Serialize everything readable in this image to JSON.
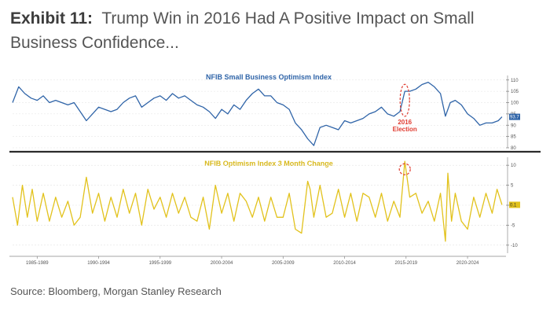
{
  "header": {
    "exhibit_label": "Exhibit 11:",
    "title_text": "Trump Win in 2016 Had A Positive Impact on Small Business Confidence..."
  },
  "source": "Source: Bloomberg, Morgan Stanley Research",
  "colors": {
    "top_series": "#2f64a8",
    "bottom_series": "#e2c21c",
    "highlight": "#e03c31",
    "divider": "#2b2b2b",
    "tag": "#2f64a8"
  },
  "chart_data": [
    {
      "type": "line",
      "title": "NFIB Small Business Optimism Index",
      "ylim": [
        80,
        112
      ],
      "yticks": [
        80,
        85,
        90,
        95,
        100,
        105,
        110
      ],
      "ytick_labels": [
        "80",
        "85",
        "90",
        "95",
        "100",
        "105",
        "110"
      ],
      "current_value_label": "93.7",
      "current_value": 93.7,
      "annotation": {
        "text": [
          "2016",
          "Election"
        ],
        "x": 2016.9,
        "y_top": 106,
        "y_bottom": 96
      },
      "series": [
        {
          "x": [
            1985,
            1985.5,
            1986,
            1986.5,
            1987,
            1987.5,
            1988,
            1988.5,
            1989,
            1989.5,
            1990,
            1990.5,
            1991,
            1991.5,
            1992,
            1992.5,
            1993,
            1993.5,
            1994,
            1994.5,
            1995,
            1995.5,
            1996,
            1996.5,
            1997,
            1997.5,
            1998,
            1998.5,
            1999,
            1999.5,
            2000,
            2000.5,
            2001,
            2001.5,
            2002,
            2002.5,
            2003,
            2003.5,
            2004,
            2004.5,
            2005,
            2005.5,
            2006,
            2006.5,
            2007,
            2007.5,
            2008,
            2008.5,
            2009,
            2009.5,
            2010,
            2010.5,
            2011,
            2011.5,
            2012,
            2012.5,
            2013,
            2013.5,
            2014,
            2014.5,
            2015,
            2015.5,
            2016,
            2016.5,
            2016.9,
            2017.3,
            2017.8,
            2018.3,
            2018.8,
            2019.3,
            2019.8,
            2020.2,
            2020.6,
            2021,
            2021.5,
            2022,
            2022.5,
            2023,
            2023.5,
            2024,
            2024.5,
            2024.8
          ],
          "y": [
            100,
            107,
            104,
            102,
            101,
            103,
            100,
            101,
            100,
            99,
            100,
            96,
            92,
            95,
            98,
            97,
            96,
            97,
            100,
            102,
            103,
            98,
            100,
            102,
            103,
            101,
            104,
            102,
            103,
            101,
            99,
            98,
            96,
            93,
            97,
            95,
            99,
            97,
            101,
            104,
            106,
            103,
            103,
            100,
            99,
            97,
            91,
            88,
            84,
            81,
            89,
            90,
            89,
            88,
            92,
            91,
            92,
            93,
            95,
            96,
            98,
            95,
            94,
            96,
            105,
            105,
            106,
            108,
            109,
            107,
            104,
            94,
            100,
            101,
            99,
            95,
            93,
            90,
            91,
            91,
            92,
            93.7
          ]
        }
      ]
    },
    {
      "type": "line",
      "title": "NFIB Optimism Index 3 Month Change",
      "ylim": [
        -12,
        12
      ],
      "yticks": [
        -10,
        -5,
        0,
        5,
        10
      ],
      "ytick_labels": [
        "-10",
        "-5",
        "0",
        "5",
        "10"
      ],
      "current_value_label": "0.1",
      "current_value": 0.1,
      "x_range": [
        1985,
        2025
      ],
      "xticks": [
        1987,
        1992,
        1997,
        2002,
        2007,
        2012,
        2017,
        2022
      ],
      "xtick_labels": [
        "1985-1989",
        "1990-1994",
        "1995-1999",
        "2000-2004",
        "2005-2009",
        "2010-2014",
        "2015-2019",
        "2020-2024"
      ],
      "annotation": {
        "x": 2016.9,
        "y": 9
      },
      "series": [
        {
          "x": [
            1985,
            1985.4,
            1985.8,
            1986.2,
            1986.6,
            1987,
            1987.5,
            1988,
            1988.5,
            1989,
            1989.5,
            1990,
            1990.5,
            1991,
            1991.5,
            1992,
            1992.5,
            1993,
            1993.5,
            1994,
            1994.5,
            1995,
            1995.5,
            1996,
            1996.5,
            1997,
            1997.5,
            1998,
            1998.5,
            1999,
            1999.5,
            2000,
            2000.5,
            2001,
            2001.5,
            2002,
            2002.5,
            2003,
            2003.5,
            2004,
            2004.5,
            2005,
            2005.5,
            2006,
            2006.5,
            2007,
            2007.5,
            2008,
            2008.5,
            2009,
            2009.2,
            2009.5,
            2010,
            2010.5,
            2011,
            2011.5,
            2012,
            2012.5,
            2013,
            2013.5,
            2014,
            2014.5,
            2015,
            2015.5,
            2016,
            2016.5,
            2016.9,
            2017.3,
            2017.8,
            2018.3,
            2018.8,
            2019.3,
            2019.8,
            2020.2,
            2020.4,
            2020.7,
            2021,
            2021.5,
            2022,
            2022.5,
            2023,
            2023.5,
            2024,
            2024.4,
            2024.8
          ],
          "y": [
            2,
            -5,
            5,
            -3,
            4,
            -4,
            3,
            -4,
            2,
            -3,
            1,
            -5,
            -3,
            7,
            -2,
            3,
            -4,
            2,
            -3,
            4,
            -2,
            3,
            -5,
            4,
            -1,
            2,
            -3,
            3,
            -2,
            2,
            -3,
            -4,
            2,
            -6,
            5,
            -2,
            3,
            -4,
            3,
            1,
            -3,
            2,
            -4,
            2,
            -3,
            -3,
            3,
            -6,
            -7,
            6,
            4,
            -3,
            5,
            -3,
            -2,
            4,
            -3,
            3,
            -4,
            3,
            2,
            -3,
            3,
            -4,
            1,
            -3,
            11,
            2,
            3,
            -2,
            1,
            -4,
            3,
            -9,
            8,
            -4,
            3,
            -4,
            -6,
            2,
            -3,
            3,
            -2,
            4,
            0.1
          ]
        }
      ]
    }
  ]
}
